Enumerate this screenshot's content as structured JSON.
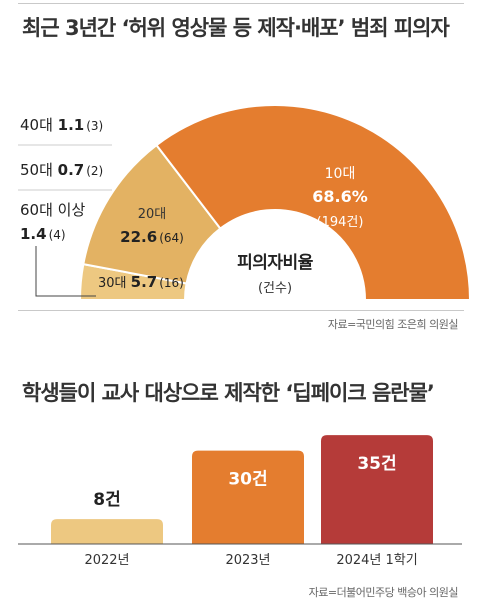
{
  "colors": {
    "teens": "#e47d2f",
    "twenties": "#e3b263",
    "thirties": "#edc881",
    "bar_2022": "#edc881",
    "bar_2023": "#e47d2f",
    "bar_2024": "#b53b39",
    "donut_center": "#ffffff"
  },
  "chart_data": [
    {
      "type": "pie",
      "title": "최근 3년간 ‘허위 영상물 등 제작·배포’ 범죄 피의자",
      "center_label": "피의자비율",
      "center_unit": "(건수)",
      "slices": [
        {
          "label": "10대",
          "value": 68.6,
          "value_text": "68.6%",
          "count": 194,
          "count_text": "(194건)",
          "color_key": "teens"
        },
        {
          "label": "20대",
          "value": 22.6,
          "value_text": "22.6",
          "count": 64,
          "count_text": "(64)",
          "color_key": "twenties"
        },
        {
          "label": "30대",
          "value": 5.7,
          "value_text": "5.7",
          "count": 16,
          "count_text": "(16)",
          "color_key": "thirties"
        },
        {
          "label": "40대",
          "value": 1.1,
          "value_text": "1.1",
          "count": 3,
          "count_text": "(3)"
        },
        {
          "label": "50대",
          "value": 0.7,
          "value_text": "0.7",
          "count": 2,
          "count_text": "(2)"
        },
        {
          "label": "60대 이상",
          "value": 1.4,
          "value_text": "1.4",
          "count": 4,
          "count_text": "(4)"
        }
      ],
      "source": "자료=국민의힘 조은희 의원실"
    },
    {
      "type": "bar",
      "title": "학생들이 교사 대상으로 제작한 ‘딥페이크 음란물’",
      "categories": [
        "2022년",
        "2023년",
        "2024년 1학기"
      ],
      "values": [
        8,
        30,
        35
      ],
      "value_labels": [
        "8건",
        "30건",
        "35건"
      ],
      "bar_color_keys": [
        "bar_2022",
        "bar_2023",
        "bar_2024"
      ],
      "source": "자료=더불어민주당 백승아 의원실"
    }
  ]
}
